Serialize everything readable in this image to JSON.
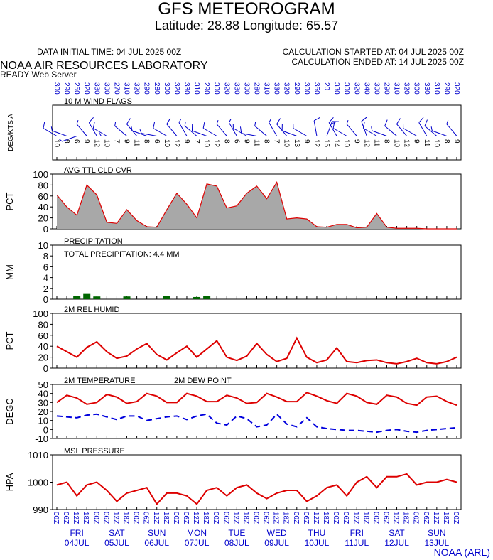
{
  "header": {
    "title": "GFS METEOROGRAM",
    "subtitle": "Latitude: 28.88 Longitude:  65.57",
    "data_time": "DATA INITIAL TIME: 04 JUL 2025 00Z",
    "calc_started": "CALCULATION STARTED AT: 04 JUL 2025 00Z",
    "calc_ended": "CALCULATION ENDED AT: 14 JUL 2025 00Z",
    "lab": "NOAA AIR RESOURCES LABORATORY",
    "server": "READY Web Server"
  },
  "footer": "NOAA (ARL)",
  "chart_data": [
    {
      "type": "wind",
      "title": "10 M  WIND FLAGS",
      "ylabel": "DEG/KTS  A",
      "color": "#0000cc",
      "dir": [
        300,
        290,
        250,
        320,
        330,
        300,
        270,
        310,
        320,
        290,
        280,
        300,
        320,
        330,
        310,
        290,
        300,
        320,
        330,
        300,
        280,
        310,
        330,
        320,
        290,
        300,
        350,
        20,
        330,
        300,
        320,
        340,
        300,
        290,
        310,
        320,
        300,
        330,
        310,
        290,
        320
      ],
      "speed": [
        10,
        8,
        6,
        9,
        12,
        10,
        7,
        9,
        11,
        8,
        6,
        10,
        12,
        9,
        7,
        10,
        12,
        8,
        6,
        9,
        11,
        8,
        7,
        10,
        13,
        9,
        12,
        15,
        14,
        10,
        9,
        12,
        11,
        8,
        10,
        12,
        9,
        11,
        10,
        8,
        9
      ]
    },
    {
      "type": "area",
      "title": "AVG TTL CLD CVR",
      "ylabel": "PCT",
      "color": "#dd0000",
      "fill": "#a8a8a8",
      "ylim": [
        0,
        100
      ],
      "yticks": [
        0,
        20,
        40,
        60,
        80,
        100
      ],
      "values": [
        62,
        40,
        25,
        80,
        62,
        12,
        10,
        35,
        15,
        4,
        3,
        35,
        65,
        45,
        20,
        82,
        78,
        38,
        42,
        65,
        78,
        55,
        85,
        18,
        20,
        18,
        4,
        3,
        8,
        8,
        2,
        3,
        28,
        3,
        1,
        1,
        1,
        0,
        0,
        0,
        0
      ]
    },
    {
      "type": "bar",
      "title": "PRECIPITATION",
      "ylabel": "MM",
      "color": "#006600",
      "annotation": "TOTAL PRECIPITATION:   4.4 MM",
      "ylim": [
        0,
        10
      ],
      "yticks": [
        0,
        2,
        4,
        6,
        8,
        10
      ],
      "values": [
        0,
        0,
        0.6,
        1.1,
        0.5,
        0,
        0,
        0.5,
        0,
        0,
        0,
        0.6,
        0,
        0,
        0.4,
        0.6,
        0,
        0,
        0,
        0,
        0,
        0,
        0,
        0,
        0,
        0,
        0,
        0,
        0,
        0,
        0,
        0,
        0,
        0,
        0,
        0,
        0,
        0,
        0,
        0,
        0
      ]
    },
    {
      "type": "line",
      "title": "2M REL HUMID",
      "ylabel": "PCT",
      "color": "#dd0000",
      "ylim": [
        0,
        100
      ],
      "yticks": [
        0,
        20,
        40,
        60,
        80,
        100
      ],
      "values": [
        40,
        30,
        20,
        38,
        48,
        30,
        18,
        22,
        35,
        45,
        25,
        15,
        28,
        40,
        20,
        35,
        50,
        20,
        14,
        22,
        45,
        25,
        12,
        18,
        55,
        20,
        10,
        15,
        37,
        12,
        10,
        14,
        15,
        10,
        8,
        12,
        18,
        10,
        8,
        12,
        20
      ]
    },
    {
      "type": "multiline",
      "ylabel": "DEGC",
      "ylim": [
        -10,
        50
      ],
      "yticks": [
        -10,
        0,
        10,
        20,
        30,
        40,
        50
      ],
      "series": [
        {
          "name": "2M TEMPERATURE",
          "color": "#dd0000",
          "dash": false,
          "values": [
            30,
            38,
            35,
            28,
            30,
            39,
            36,
            29,
            31,
            40,
            37,
            30,
            30,
            40,
            37,
            31,
            31,
            38,
            35,
            29,
            30,
            40,
            36,
            31,
            31,
            41,
            37,
            32,
            29,
            40,
            37,
            30,
            28,
            38,
            36,
            29,
            27,
            36,
            37,
            31,
            27
          ]
        },
        {
          "name": "2M  DEW POINT",
          "color": "#0000dd",
          "dash": true,
          "values": [
            15,
            14,
            13,
            16,
            17,
            14,
            11,
            15,
            15,
            10,
            12,
            14,
            15,
            11,
            15,
            17,
            7,
            5,
            15,
            12,
            3,
            5,
            17,
            6,
            3,
            13,
            3,
            1,
            0,
            -1,
            -1,
            -2,
            -3,
            -1,
            0,
            -2,
            -3,
            -1,
            0,
            1,
            2
          ]
        }
      ]
    },
    {
      "type": "line",
      "title": "MSL PRESSURE",
      "ylabel": "HPA",
      "color": "#dd0000",
      "ylim": [
        990,
        1010
      ],
      "yticks": [
        990,
        1000,
        1010
      ],
      "values": [
        999,
        1000,
        995,
        999,
        1000,
        997,
        993,
        996,
        997,
        998,
        992,
        996,
        996,
        995,
        992,
        997,
        998,
        995,
        998,
        999,
        996,
        994,
        996,
        997,
        997,
        993,
        995,
        998,
        999,
        995,
        1000,
        1002,
        998,
        1002,
        1002,
        1003,
        999,
        1000,
        1000,
        1001,
        1000
      ],
      "categories": [
        "00Z",
        "06Z",
        "12Z",
        "18Z",
        "00Z",
        "06Z",
        "12Z",
        "18Z",
        "00Z",
        "06Z",
        "12Z",
        "18Z",
        "00Z",
        "06Z",
        "12Z",
        "18Z",
        "00Z",
        "06Z",
        "12Z",
        "18Z",
        "00Z",
        "06Z",
        "12Z",
        "18Z",
        "00Z",
        "06Z",
        "12Z",
        "18Z",
        "00Z",
        "06Z",
        "12Z",
        "18Z",
        "00Z",
        "06Z",
        "12Z",
        "18Z",
        "00Z",
        "06Z",
        "12Z",
        "18Z",
        "00Z"
      ],
      "days": [
        "FRI",
        "SAT",
        "SUN",
        "MON",
        "TUE",
        "WED",
        "THU",
        "FRI",
        "SAT",
        "SUN"
      ],
      "dates": [
        "04JUL",
        "05JUL",
        "06JUL",
        "07JUL",
        "08JUL",
        "09JUL",
        "10JUL",
        "11JUL",
        "12JUL",
        "13JUL"
      ]
    }
  ]
}
